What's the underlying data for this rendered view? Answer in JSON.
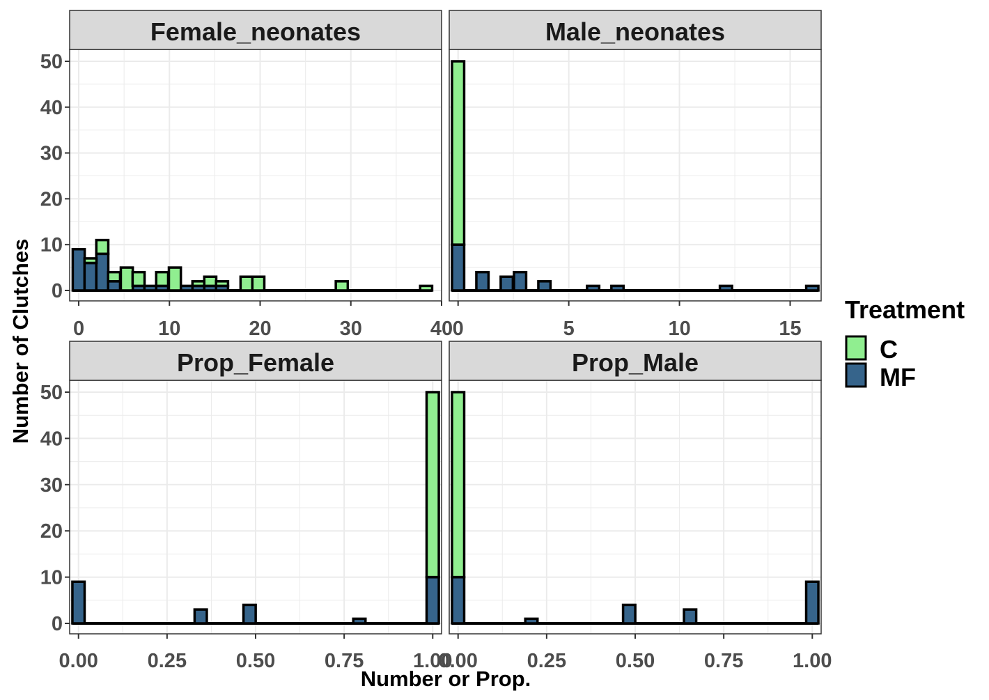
{
  "colors": {
    "C": "#90EE90",
    "MF": "#36648B",
    "outline": "#000000",
    "strip_fill": "#D9D9D9",
    "grid": "#EBEBEB"
  },
  "axes": {
    "xlabel": "Number or Prop.",
    "ylabel": "Number of Clutches",
    "y_ticks": [
      "0",
      "10",
      "20",
      "30",
      "40",
      "50"
    ]
  },
  "legend": {
    "title": "Treatment",
    "items": [
      {
        "key": "C",
        "label": "C"
      },
      {
        "key": "MF",
        "label": "MF"
      }
    ]
  },
  "chart_data": [
    {
      "type": "bar",
      "title": "Female_neonates",
      "xlim": [
        -1,
        40
      ],
      "ylim": [
        0,
        52
      ],
      "x_ticks": [
        "0",
        "10",
        "20",
        "30",
        "40"
      ],
      "bin_width": 1.32,
      "series": [
        {
          "name": "MF",
          "x": [
            0,
            1.3,
            2.6,
            3.9,
            6.6,
            7.9,
            9.2,
            11.9,
            13.2,
            14.5,
            15.8
          ],
          "values": [
            9,
            6,
            8,
            2,
            1,
            1,
            1,
            1,
            1,
            1,
            1
          ]
        },
        {
          "name": "C",
          "x": [
            1.3,
            2.6,
            3.9,
            5.3,
            6.6,
            9.2,
            10.6,
            11.9,
            13.2,
            14.5,
            15.8,
            18.5,
            19.8,
            29.0,
            38.3
          ],
          "values": [
            1,
            3,
            2,
            5,
            3,
            3,
            5,
            0,
            1,
            2,
            1,
            3,
            3,
            2,
            1
          ]
        }
      ]
    },
    {
      "type": "bar",
      "title": "Male_neonates",
      "xlim": [
        -0.4,
        16.4
      ],
      "ylim": [
        0,
        52
      ],
      "x_ticks": [
        "0",
        "5",
        "10",
        "15"
      ],
      "bin_width": 0.55,
      "series": [
        {
          "name": "MF",
          "x": [
            0,
            1.1,
            2.2,
            2.8,
            3.9,
            6.1,
            7.2,
            12.1,
            16.0
          ],
          "values": [
            10,
            4,
            3,
            4,
            2,
            1,
            1,
            1,
            1
          ]
        },
        {
          "name": "C",
          "x": [
            0
          ],
          "values": [
            40
          ]
        }
      ]
    },
    {
      "type": "bar",
      "title": "Prop_Female",
      "xlim": [
        -0.025,
        1.025
      ],
      "ylim": [
        0,
        52
      ],
      "x_ticks": [
        "0.00",
        "0.25",
        "0.50",
        "0.75",
        "1.00"
      ],
      "bin_width": 0.0345,
      "series": [
        {
          "name": "MF",
          "x": [
            0,
            0.345,
            0.483,
            0.793,
            1.0
          ],
          "values": [
            9,
            3,
            4,
            1,
            10
          ]
        },
        {
          "name": "C",
          "x": [
            1.0
          ],
          "values": [
            40
          ]
        }
      ]
    },
    {
      "type": "bar",
      "title": "Prop_Male",
      "xlim": [
        -0.025,
        1.025
      ],
      "ylim": [
        0,
        52
      ],
      "x_ticks": [
        "0.00",
        "0.25",
        "0.50",
        "0.75",
        "1.00"
      ],
      "bin_width": 0.0345,
      "series": [
        {
          "name": "MF",
          "x": [
            0,
            0.207,
            0.483,
            0.655,
            1.0
          ],
          "values": [
            10,
            1,
            4,
            3,
            9
          ]
        },
        {
          "name": "C",
          "x": [
            0
          ],
          "values": [
            40
          ]
        }
      ]
    }
  ]
}
